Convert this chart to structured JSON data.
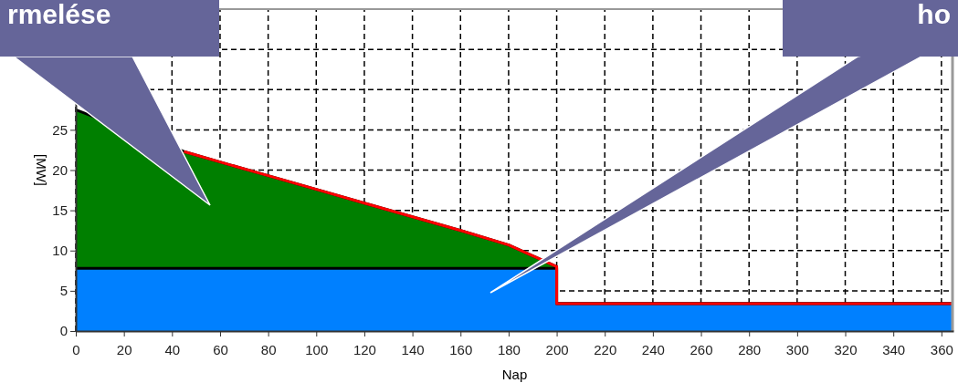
{
  "chart_data": {
    "type": "area",
    "xlabel": "Nap",
    "ylabel": "[MW]",
    "xlim": [
      0,
      365
    ],
    "xticks": [
      0,
      20,
      40,
      60,
      80,
      100,
      120,
      140,
      160,
      180,
      200,
      220,
      240,
      260,
      280,
      300,
      320,
      340,
      360
    ],
    "ylim": [
      0,
      40
    ],
    "yticks": [
      0,
      5,
      10,
      15,
      20,
      25,
      {
        "value": 30,
        "label": null
      },
      {
        "value": 35,
        "label": null
      }
    ],
    "grid": true,
    "series": [
      {
        "color": "#007f00",
        "x": [
          0,
          45,
          60,
          80,
          100,
          120,
          140,
          160,
          180,
          200,
          200,
          365
        ],
        "values": [
          27.5,
          22.3,
          21,
          19.3,
          17.6,
          15.9,
          14.2,
          12.5,
          10.7,
          8,
          3.4,
          3.4
        ]
      },
      {
        "color": "#0080ff",
        "x": [
          0,
          200,
          200,
          365
        ],
        "values": [
          7.8,
          7.8,
          3.4,
          3.4
        ]
      },
      {
        "type": "line",
        "color": "#ff0000",
        "x": [
          45,
          60,
          80,
          100,
          120,
          140,
          160,
          180,
          200,
          200,
          365
        ],
        "values": [
          22.3,
          21,
          19.3,
          17.6,
          15.9,
          14.2,
          12.5,
          10.7,
          8,
          3.4,
          3.4
        ]
      }
    ],
    "annotations": [
      "rmelése",
      "ho"
    ]
  }
}
